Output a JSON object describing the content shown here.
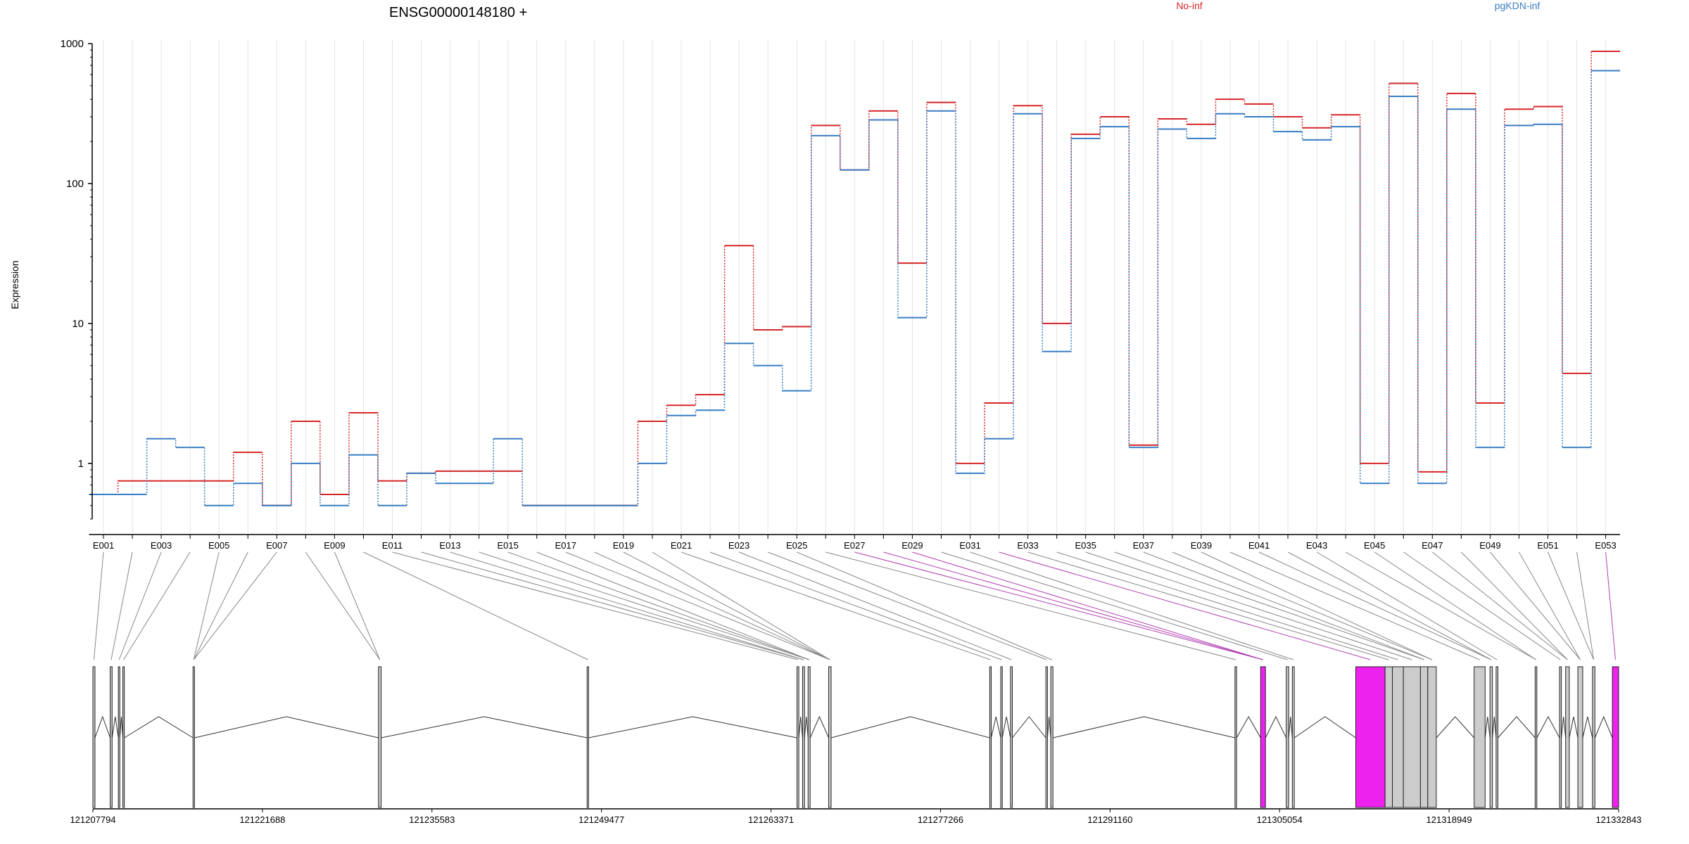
{
  "chart_data": {
    "type": "line",
    "title": "ENSG00000148180 +",
    "ylabel": "Expression",
    "y_scale": "log",
    "ylim": [
      0.4,
      1000
    ],
    "y_ticks": [
      {
        "value": 1,
        "label": "1"
      },
      {
        "value": 10,
        "label": "10"
      },
      {
        "value": 100,
        "label": "100"
      },
      {
        "value": 1000,
        "label": "1000"
      }
    ],
    "grid": true,
    "legend_placement": "top",
    "categories": [
      "E001",
      "E002",
      "E003",
      "E004",
      "E005",
      "E006",
      "E007",
      "E008",
      "E009",
      "E010",
      "E011",
      "E012",
      "E013",
      "E014",
      "E015",
      "E016",
      "E017",
      "E018",
      "E019",
      "E020",
      "E021",
      "E022",
      "E023",
      "E024",
      "E025",
      "E026",
      "E027",
      "E028",
      "E029",
      "E030",
      "E031",
      "E032",
      "E033",
      "E034",
      "E035",
      "E036",
      "E037",
      "E038",
      "E039",
      "E040",
      "E041",
      "E042",
      "E043",
      "E044",
      "E045",
      "E046",
      "E047",
      "E048",
      "E049",
      "E050",
      "E051",
      "E052",
      "E053"
    ],
    "tick_labels": [
      "E001",
      "",
      "E003",
      "",
      "E005",
      "",
      "E007",
      "",
      "E009",
      "",
      "E011",
      "",
      "E013",
      "",
      "E015",
      "",
      "E017",
      "",
      "E019",
      "",
      "E021",
      "",
      "E023",
      "",
      "E025",
      "",
      "E027",
      "",
      "E029",
      "",
      "E031",
      "",
      "E033",
      "",
      "E035",
      "",
      "E037",
      "",
      "E039",
      "",
      "E041",
      "",
      "E043",
      "",
      "E045",
      "",
      "E047",
      "",
      "E049",
      "",
      "E051",
      "",
      "E053"
    ],
    "series": [
      {
        "name": "No-inf",
        "color": "#d62728",
        "values": [
          0.6,
          0.75,
          0.75,
          0.75,
          0.75,
          1.2,
          0.5,
          2.0,
          0.6,
          2.3,
          0.75,
          0.85,
          0.88,
          0.88,
          0.88,
          0.5,
          0.5,
          0.5,
          0.5,
          2.0,
          2.6,
          3.1,
          36,
          9,
          9.5,
          260,
          125,
          330,
          27,
          380,
          1.0,
          2.7,
          360,
          10,
          225,
          300,
          1.35,
          290,
          265,
          400,
          370,
          300,
          250,
          310,
          1.0,
          520,
          0.87,
          440,
          2.7,
          340,
          355,
          4.4,
          880
        ]
      },
      {
        "name": "pgKDN-inf",
        "color": "#3a7ec2",
        "values": [
          0.6,
          0.6,
          1.5,
          1.3,
          0.5,
          0.72,
          0.5,
          1.0,
          0.5,
          1.15,
          0.5,
          0.85,
          0.72,
          0.72,
          1.5,
          0.5,
          0.5,
          0.5,
          0.5,
          1.0,
          2.2,
          2.4,
          7.2,
          5.0,
          3.3,
          220,
          125,
          285,
          11,
          330,
          0.85,
          1.5,
          315,
          6.3,
          210,
          255,
          1.3,
          245,
          210,
          315,
          300,
          235,
          205,
          255,
          0.72,
          420,
          0.72,
          340,
          1.3,
          260,
          265,
          1.3,
          640
        ]
      }
    ],
    "coordinate_axis": {
      "tick_values": [
        121207794,
        121221688,
        121235583,
        121249477,
        121263371,
        121277266,
        121291160,
        121305054,
        121318949,
        121332843
      ],
      "tick_labels": [
        "121207794",
        "121221688",
        "121235583",
        "121249477",
        "121263371",
        "121277266",
        "121291160",
        "121305054",
        "121318949",
        "121332843"
      ]
    },
    "exons": [
      {
        "start": 121207794,
        "end": 121207964,
        "hl": false
      },
      {
        "start": 121209210,
        "end": 121209370,
        "hl": false
      },
      {
        "start": 121209880,
        "end": 121210000,
        "hl": false
      },
      {
        "start": 121210250,
        "end": 121210370,
        "hl": false
      },
      {
        "start": 121216000,
        "end": 121216120,
        "hl": false
      },
      {
        "start": 121231200,
        "end": 121231420,
        "hl": false
      },
      {
        "start": 121248300,
        "end": 121248420,
        "hl": false
      },
      {
        "start": 121265500,
        "end": 121265650,
        "hl": false
      },
      {
        "start": 121265960,
        "end": 121266120,
        "hl": false
      },
      {
        "start": 121266410,
        "end": 121266580,
        "hl": false
      },
      {
        "start": 121268100,
        "end": 121268300,
        "hl": false
      },
      {
        "start": 121281300,
        "end": 121281420,
        "hl": false
      },
      {
        "start": 121282200,
        "end": 121282330,
        "hl": false
      },
      {
        "start": 121283000,
        "end": 121283150,
        "hl": false
      },
      {
        "start": 121285900,
        "end": 121286030,
        "hl": false
      },
      {
        "start": 121286300,
        "end": 121286480,
        "hl": false
      },
      {
        "start": 121301400,
        "end": 121301530,
        "hl": false
      },
      {
        "start": 121303500,
        "end": 121303900,
        "hl": true
      },
      {
        "start": 121305600,
        "end": 121305800,
        "hl": false
      },
      {
        "start": 121306100,
        "end": 121306260,
        "hl": false
      },
      {
        "start": 121311300,
        "end": 121313700,
        "hl": true
      },
      {
        "start": 121313700,
        "end": 121314300,
        "hl": false
      },
      {
        "start": 121314300,
        "end": 121315200,
        "hl": false
      },
      {
        "start": 121315200,
        "end": 121316600,
        "hl": false
      },
      {
        "start": 121316600,
        "end": 121317200,
        "hl": false
      },
      {
        "start": 121317200,
        "end": 121317900,
        "hl": false
      },
      {
        "start": 121321000,
        "end": 121321900,
        "hl": false
      },
      {
        "start": 121322300,
        "end": 121322500,
        "hl": false
      },
      {
        "start": 121322800,
        "end": 121322950,
        "hl": false
      },
      {
        "start": 121326000,
        "end": 121326140,
        "hl": false
      },
      {
        "start": 121328000,
        "end": 121328150,
        "hl": false
      },
      {
        "start": 121328500,
        "end": 121328800,
        "hl": false
      },
      {
        "start": 121329500,
        "end": 121329900,
        "hl": false
      },
      {
        "start": 121330700,
        "end": 121330900,
        "hl": false
      },
      {
        "start": 121332330,
        "end": 121332843,
        "hl": true
      }
    ],
    "exon_map": [
      {
        "exon": 0,
        "color": "#888888"
      },
      {
        "exon": 1,
        "color": "#888888"
      },
      {
        "exon": 2,
        "color": "#888888"
      },
      {
        "exon": 3,
        "color": "#888888"
      },
      {
        "exon": 4,
        "color": "#888888"
      },
      {
        "exon": 4,
        "color": "#888888"
      },
      {
        "exon": 4,
        "color": "#888888"
      },
      {
        "exon": 5,
        "color": "#888888"
      },
      {
        "exon": 5,
        "color": "#888888"
      },
      {
        "exon": 6,
        "color": "#888888"
      },
      {
        "exon": 7,
        "color": "#888888"
      },
      {
        "exon": 8,
        "color": "#888888"
      },
      {
        "exon": 8,
        "color": "#888888"
      },
      {
        "exon": 9,
        "color": "#888888"
      },
      {
        "exon": 9,
        "color": "#888888"
      },
      {
        "exon": 9,
        "color": "#888888"
      },
      {
        "exon": 10,
        "color": "#888888"
      },
      {
        "exon": 10,
        "color": "#888888"
      },
      {
        "exon": 10,
        "color": "#888888"
      },
      {
        "exon": 10,
        "color": "#888888"
      },
      {
        "exon": 11,
        "color": "#888888"
      },
      {
        "exon": 12,
        "color": "#888888"
      },
      {
        "exon": 13,
        "color": "#888888"
      },
      {
        "exon": 14,
        "color": "#888888"
      },
      {
        "exon": 15,
        "color": "#888888"
      },
      {
        "exon": 16,
        "color": "#888888"
      },
      {
        "exon": 17,
        "color": "#b040b0"
      },
      {
        "exon": 17,
        "color": "#b040b0"
      },
      {
        "exon": 17,
        "color": "#b040b0"
      },
      {
        "exon": 18,
        "color": "#888888"
      },
      {
        "exon": 19,
        "color": "#888888"
      },
      {
        "exon": 20,
        "color": "#b040b0"
      },
      {
        "exon": 21,
        "color": "#888888"
      },
      {
        "exon": 22,
        "color": "#888888"
      },
      {
        "exon": 23,
        "color": "#888888"
      },
      {
        "exon": 24,
        "color": "#888888"
      },
      {
        "exon": 24,
        "color": "#888888"
      },
      {
        "exon": 25,
        "color": "#888888"
      },
      {
        "exon": 25,
        "color": "#888888"
      },
      {
        "exon": 26,
        "color": "#888888"
      },
      {
        "exon": 27,
        "color": "#888888"
      },
      {
        "exon": 27,
        "color": "#888888"
      },
      {
        "exon": 28,
        "color": "#888888"
      },
      {
        "exon": 29,
        "color": "#888888"
      },
      {
        "exon": 29,
        "color": "#888888"
      },
      {
        "exon": 30,
        "color": "#888888"
      },
      {
        "exon": 31,
        "color": "#888888"
      },
      {
        "exon": 31,
        "color": "#888888"
      },
      {
        "exon": 32,
        "color": "#888888"
      },
      {
        "exon": 32,
        "color": "#888888"
      },
      {
        "exon": 33,
        "color": "#888888"
      },
      {
        "exon": 33,
        "color": "#888888"
      },
      {
        "exon": 34,
        "color": "#b040b0"
      }
    ]
  }
}
